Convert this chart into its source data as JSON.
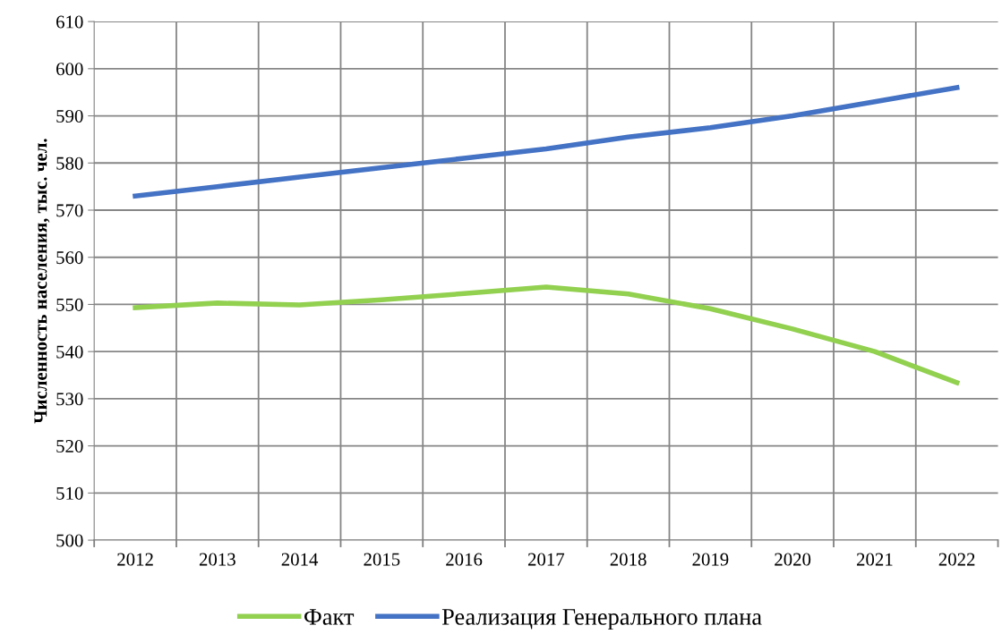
{
  "chart_data": {
    "type": "line",
    "ylabel": "Численность населения, тыс. чел.",
    "categories": [
      "2012",
      "2013",
      "2014",
      "2015",
      "2016",
      "2017",
      "2018",
      "2019",
      "2020",
      "2021",
      "2022"
    ],
    "series": [
      {
        "name": "Факт",
        "color": "#92d050",
        "values": [
          549.3,
          550.3,
          549.9,
          551,
          552.3,
          553.7,
          552.2,
          549.1,
          544.8,
          540,
          533.4
        ]
      },
      {
        "name": "Реализация Генерального плана",
        "color": "#4472c4",
        "values": [
          573,
          575,
          577,
          579,
          581,
          583,
          585.5,
          587.5,
          590,
          593,
          596
        ]
      }
    ],
    "ylim": [
      500,
      610
    ],
    "yticks": [
      500,
      510,
      520,
      530,
      540,
      550,
      560,
      570,
      580,
      590,
      600,
      610
    ],
    "grid": true,
    "legend": "bottom",
    "marker": "none",
    "line_style": "solid"
  }
}
